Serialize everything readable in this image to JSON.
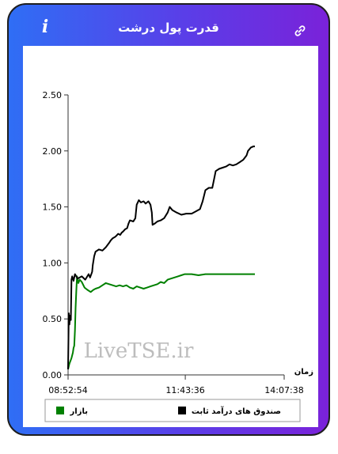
{
  "header": {
    "title": "قدرت پول درشت",
    "info_icon": "info-icon",
    "link_icon": "link-icon"
  },
  "chart_data": {
    "type": "line",
    "title": "",
    "xlabel": "زمان",
    "ylabel": "",
    "ylim": [
      0,
      2.5
    ],
    "yticks": [
      "0.00",
      "0.50",
      "1.00",
      "1.50",
      "2.00",
      "2.50"
    ],
    "x_ticks": [
      "08:52:54",
      "11:43:36",
      "14:07:38"
    ],
    "x_range_minutes": [
      0,
      314.7
    ],
    "x_tick_positions_minutes": [
      0,
      170.7,
      314.7
    ],
    "grid": false,
    "legend_position": "bottom",
    "watermark": "LiveTSE.ir",
    "series": [
      {
        "name": "صندوق های درآمد ثابت",
        "color": "#000000",
        "points": [
          [
            0,
            0.05
          ],
          [
            1,
            0.55
          ],
          [
            2,
            0.45
          ],
          [
            3,
            0.53
          ],
          [
            4,
            0.49
          ],
          [
            5,
            0.85
          ],
          [
            6,
            0.88
          ],
          [
            8,
            0.84
          ],
          [
            10,
            0.9
          ],
          [
            14,
            0.86
          ],
          [
            20,
            0.88
          ],
          [
            25,
            0.85
          ],
          [
            30,
            0.9
          ],
          [
            32,
            0.87
          ],
          [
            35,
            0.92
          ],
          [
            36,
            0.98
          ],
          [
            38,
            1.06
          ],
          [
            40,
            1.1
          ],
          [
            45,
            1.12
          ],
          [
            50,
            1.11
          ],
          [
            55,
            1.14
          ],
          [
            60,
            1.18
          ],
          [
            62,
            1.2
          ],
          [
            65,
            1.22
          ],
          [
            68,
            1.23
          ],
          [
            70,
            1.24
          ],
          [
            73,
            1.26
          ],
          [
            76,
            1.25
          ],
          [
            78,
            1.27
          ],
          [
            80,
            1.28
          ],
          [
            83,
            1.3
          ],
          [
            86,
            1.31
          ],
          [
            88,
            1.35
          ],
          [
            90,
            1.38
          ],
          [
            95,
            1.37
          ],
          [
            98,
            1.4
          ],
          [
            100,
            1.52
          ],
          [
            103,
            1.56
          ],
          [
            106,
            1.54
          ],
          [
            110,
            1.55
          ],
          [
            113,
            1.53
          ],
          [
            117,
            1.55
          ],
          [
            120,
            1.52
          ],
          [
            122,
            1.45
          ],
          [
            123,
            1.34
          ],
          [
            126,
            1.35
          ],
          [
            130,
            1.37
          ],
          [
            135,
            1.38
          ],
          [
            140,
            1.4
          ],
          [
            145,
            1.45
          ],
          [
            148,
            1.5
          ],
          [
            152,
            1.47
          ],
          [
            158,
            1.45
          ],
          [
            165,
            1.43
          ],
          [
            172,
            1.44
          ],
          [
            180,
            1.44
          ],
          [
            186,
            1.46
          ],
          [
            192,
            1.48
          ],
          [
            196,
            1.55
          ],
          [
            200,
            1.65
          ],
          [
            205,
            1.67
          ],
          [
            210,
            1.67
          ],
          [
            213,
            1.76
          ],
          [
            215,
            1.82
          ],
          [
            220,
            1.84
          ],
          [
            225,
            1.85
          ],
          [
            230,
            1.86
          ],
          [
            235,
            1.88
          ],
          [
            240,
            1.87
          ],
          [
            245,
            1.88
          ],
          [
            250,
            1.9
          ],
          [
            255,
            1.92
          ],
          [
            260,
            1.96
          ],
          [
            262,
            2.0
          ],
          [
            266,
            2.03
          ],
          [
            270,
            2.04
          ],
          [
            272,
            2.04
          ]
        ]
      },
      {
        "name": "بازار",
        "color": "#008000",
        "points": [
          [
            0,
            0.05
          ],
          [
            2,
            0.1
          ],
          [
            5,
            0.15
          ],
          [
            7,
            0.2
          ],
          [
            8,
            0.24
          ],
          [
            9,
            0.26
          ],
          [
            10,
            0.4
          ],
          [
            11,
            0.6
          ],
          [
            12,
            0.75
          ],
          [
            13,
            0.88
          ],
          [
            15,
            0.82
          ],
          [
            17,
            0.85
          ],
          [
            20,
            0.83
          ],
          [
            24,
            0.78
          ],
          [
            28,
            0.76
          ],
          [
            33,
            0.74
          ],
          [
            37,
            0.76
          ],
          [
            40,
            0.77
          ],
          [
            45,
            0.78
          ],
          [
            50,
            0.8
          ],
          [
            55,
            0.82
          ],
          [
            60,
            0.81
          ],
          [
            65,
            0.8
          ],
          [
            70,
            0.79
          ],
          [
            75,
            0.8
          ],
          [
            80,
            0.79
          ],
          [
            85,
            0.8
          ],
          [
            90,
            0.78
          ],
          [
            95,
            0.77
          ],
          [
            100,
            0.79
          ],
          [
            105,
            0.78
          ],
          [
            110,
            0.77
          ],
          [
            115,
            0.78
          ],
          [
            120,
            0.79
          ],
          [
            125,
            0.8
          ],
          [
            130,
            0.81
          ],
          [
            135,
            0.83
          ],
          [
            140,
            0.82
          ],
          [
            145,
            0.85
          ],
          [
            150,
            0.86
          ],
          [
            155,
            0.87
          ],
          [
            160,
            0.88
          ],
          [
            165,
            0.89
          ],
          [
            170,
            0.9
          ],
          [
            180,
            0.9
          ],
          [
            190,
            0.89
          ],
          [
            200,
            0.9
          ],
          [
            210,
            0.9
          ],
          [
            220,
            0.9
          ],
          [
            230,
            0.9
          ],
          [
            240,
            0.9
          ],
          [
            250,
            0.9
          ],
          [
            260,
            0.9
          ],
          [
            272,
            0.9
          ]
        ]
      }
    ]
  }
}
